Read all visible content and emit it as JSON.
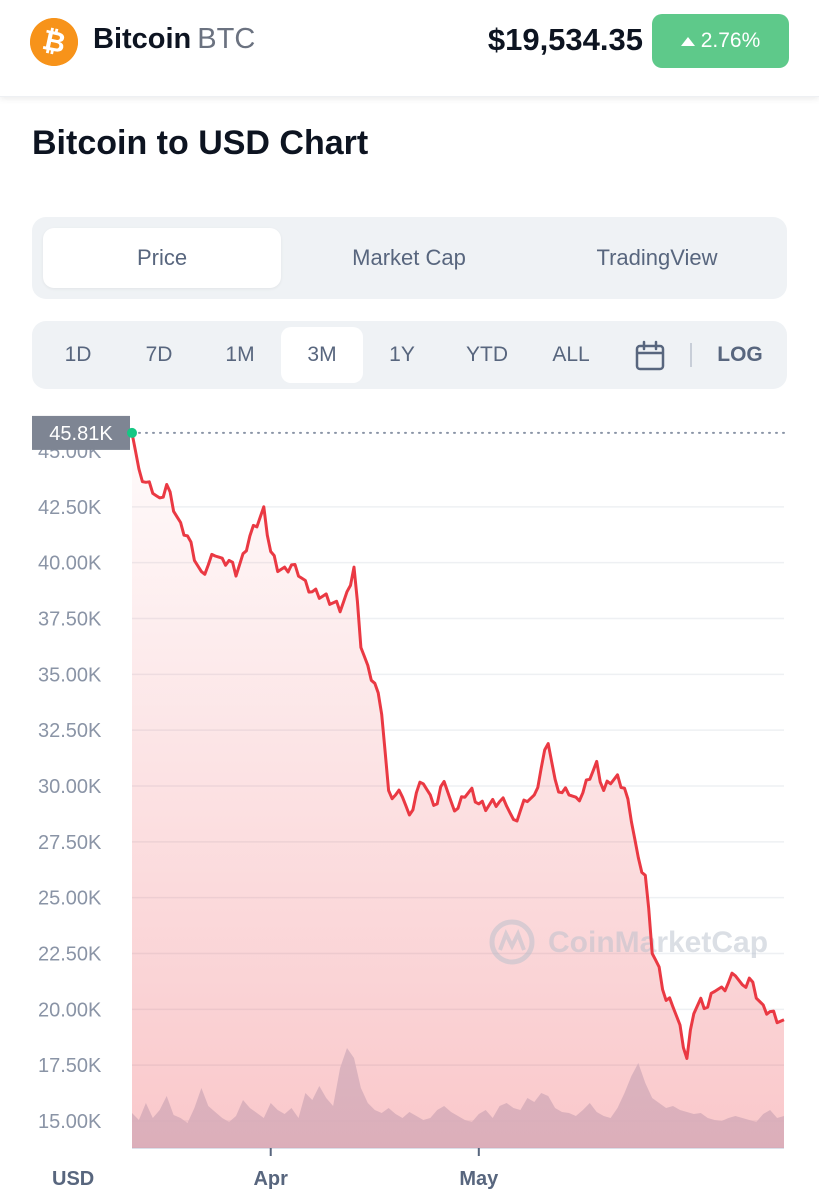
{
  "header": {
    "coin_name": "Bitcoin",
    "coin_symbol": "BTC",
    "price": "$19,534.35",
    "change": "2.76%",
    "logo_icon": "bitcoin-icon",
    "logo_color": "#f7931a",
    "change_color": "#16c784"
  },
  "page_title": "Bitcoin to USD Chart",
  "tabs": [
    {
      "label": "Price",
      "active": true
    },
    {
      "label": "Market Cap",
      "active": false
    },
    {
      "label": "TradingView",
      "active": false
    }
  ],
  "ranges": [
    {
      "label": "1D",
      "active": false
    },
    {
      "label": "7D",
      "active": false
    },
    {
      "label": "1M",
      "active": false
    },
    {
      "label": "3M",
      "active": true
    },
    {
      "label": "1Y",
      "active": false
    },
    {
      "label": "YTD",
      "active": false
    },
    {
      "label": "ALL",
      "active": false
    }
  ],
  "calendar_icon": "calendar-icon",
  "log_label": "LOG",
  "watermark": "CoinMarketCap",
  "chart_data": {
    "type": "line",
    "y_unit": "USD",
    "ylim": [
      14000,
      46000
    ],
    "yticks": [
      "15.00K",
      "17.50K",
      "20.00K",
      "22.50K",
      "25.00K",
      "27.50K",
      "30.00K",
      "32.50K",
      "35.00K",
      "37.50K",
      "40.00K",
      "42.50K"
    ],
    "x_range": [
      "2022-03-12",
      "2022-06-14"
    ],
    "xticks": [
      {
        "label": "Apr",
        "date": "2022-04-01"
      },
      {
        "label": "May",
        "date": "2022-05-01"
      }
    ],
    "max_marker": {
      "label": "45.81K",
      "value": 45810
    },
    "line_color": "#ea3943",
    "grid": true,
    "series": [
      {
        "x": [
          "2022-03-12",
          "2022-03-13",
          "2022-03-14",
          "2022-03-15",
          "2022-03-16",
          "2022-03-17",
          "2022-03-18",
          "2022-03-19",
          "2022-03-20",
          "2022-03-21",
          "2022-03-22",
          "2022-03-23",
          "2022-03-24",
          "2022-03-25",
          "2022-03-26",
          "2022-03-27",
          "2022-03-28",
          "2022-03-29",
          "2022-03-30",
          "2022-03-31",
          "2022-04-01",
          "2022-04-02",
          "2022-04-03",
          "2022-04-04",
          "2022-04-05",
          "2022-04-06",
          "2022-04-07",
          "2022-04-08",
          "2022-04-09",
          "2022-04-10",
          "2022-04-11",
          "2022-04-12",
          "2022-04-13",
          "2022-04-14",
          "2022-04-15",
          "2022-04-16",
          "2022-04-17",
          "2022-04-18",
          "2022-04-19",
          "2022-04-20",
          "2022-04-21",
          "2022-04-22",
          "2022-04-23",
          "2022-04-24",
          "2022-04-25",
          "2022-04-26",
          "2022-04-27",
          "2022-04-28",
          "2022-04-29",
          "2022-04-30",
          "2022-05-01",
          "2022-05-02",
          "2022-05-03",
          "2022-05-04",
          "2022-05-05",
          "2022-05-06",
          "2022-05-07",
          "2022-05-08",
          "2022-05-09",
          "2022-05-10",
          "2022-05-11",
          "2022-05-12",
          "2022-05-13",
          "2022-05-14",
          "2022-05-15",
          "2022-05-16",
          "2022-05-17",
          "2022-05-18",
          "2022-05-19",
          "2022-05-20",
          "2022-05-21",
          "2022-05-22",
          "2022-05-23",
          "2022-05-24",
          "2022-05-25",
          "2022-05-26",
          "2022-05-27",
          "2022-05-28",
          "2022-05-29",
          "2022-05-30",
          "2022-05-31",
          "2022-06-01",
          "2022-06-02",
          "2022-06-03",
          "2022-06-04",
          "2022-06-05",
          "2022-06-06",
          "2022-06-07",
          "2022-06-08",
          "2022-06-09",
          "2022-06-10",
          "2022-06-11",
          "2022-06-12",
          "2022-06-13",
          "2022-06-14"
        ],
        "y": [
          45800,
          44200,
          43600,
          43100,
          42900,
          43500,
          42300,
          41800,
          41200,
          40100,
          39600,
          39900,
          40300,
          40200,
          40100,
          39400,
          40400,
          41200,
          41600,
          42500,
          40500,
          39600,
          39800,
          39900,
          39400,
          39200,
          38700,
          38400,
          38600,
          38200,
          37800,
          38700,
          39800,
          36200,
          35400,
          34600,
          33200,
          29800,
          29600,
          29500,
          28700,
          29700,
          30100,
          29600,
          29200,
          30200,
          29300,
          29000,
          29500,
          29900,
          29200,
          28900,
          29400,
          29300,
          29100,
          28500,
          28900,
          29300,
          29600,
          30800,
          31900,
          30300,
          29700,
          29600,
          29500,
          29700,
          30300,
          31100,
          29800,
          30100,
          30500,
          29900,
          28400,
          26800,
          26000,
          22500,
          21900,
          20400,
          20100,
          19300,
          17800,
          19800,
          20500,
          20100,
          20800,
          21000,
          21200,
          21500,
          21100,
          21400,
          20500,
          20200,
          19900,
          19400,
          19534
        ]
      }
    ]
  },
  "volume_data": [
    0.35,
    0.28,
    0.45,
    0.3,
    0.38,
    0.52,
    0.33,
    0.3,
    0.25,
    0.4,
    0.6,
    0.42,
    0.36,
    0.3,
    0.26,
    0.32,
    0.48,
    0.4,
    0.35,
    0.3,
    0.45,
    0.38,
    0.34,
    0.4,
    0.3,
    0.55,
    0.48,
    0.62,
    0.5,
    0.42,
    0.8,
    1.0,
    0.9,
    0.6,
    0.45,
    0.38,
    0.35,
    0.4,
    0.34,
    0.3,
    0.36,
    0.32,
    0.28,
    0.3,
    0.38,
    0.42,
    0.36,
    0.32,
    0.28,
    0.26,
    0.34,
    0.38,
    0.3,
    0.42,
    0.45,
    0.4,
    0.38,
    0.5,
    0.46,
    0.55,
    0.52,
    0.4,
    0.36,
    0.35,
    0.32,
    0.38,
    0.45,
    0.36,
    0.32,
    0.3,
    0.4,
    0.55,
    0.72,
    0.85,
    0.65,
    0.5,
    0.45,
    0.4,
    0.42,
    0.38,
    0.36,
    0.34,
    0.35,
    0.3,
    0.28,
    0.27,
    0.3,
    0.32,
    0.3,
    0.28,
    0.26,
    0.34,
    0.38,
    0.3,
    0.32
  ]
}
